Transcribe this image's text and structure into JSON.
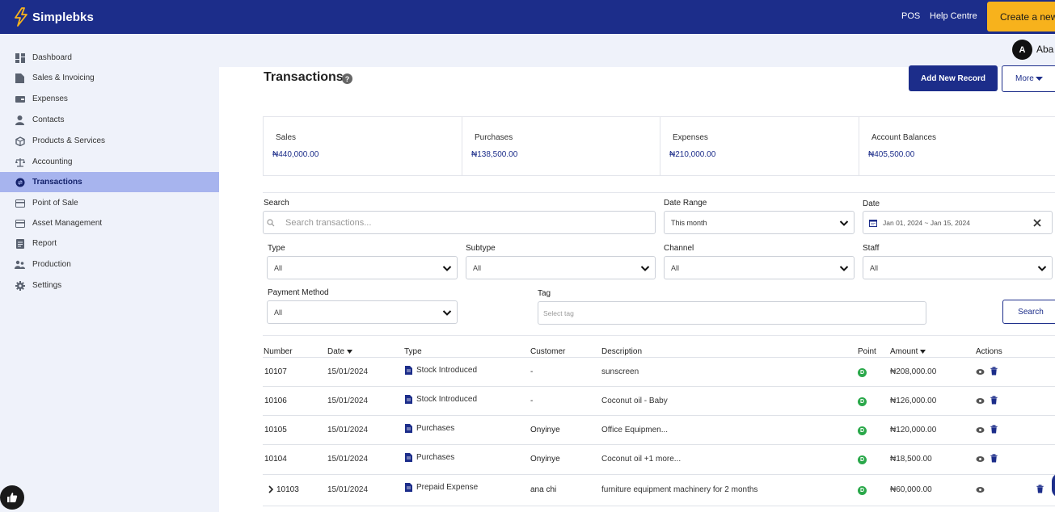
{
  "brand": {
    "name": "Simplebks"
  },
  "topnav": {
    "pos": "POS",
    "help": "Help Centre",
    "create": "Create a new"
  },
  "user": {
    "initial": "A",
    "name": "Aba"
  },
  "sidebar": {
    "items": [
      {
        "label": "Dashboard",
        "icon": "dashboard-icon",
        "active": false
      },
      {
        "label": "Sales & Invoicing",
        "icon": "document-icon",
        "active": false
      },
      {
        "label": "Expenses",
        "icon": "wallet-icon",
        "active": false
      },
      {
        "label": "Contacts",
        "icon": "person-icon",
        "active": false
      },
      {
        "label": "Products & Services",
        "icon": "box-icon",
        "active": false
      },
      {
        "label": "Accounting",
        "icon": "scale-icon",
        "active": false
      },
      {
        "label": "Transactions",
        "icon": "transactions-icon",
        "active": true
      },
      {
        "label": "Point of Sale",
        "icon": "card-icon",
        "active": false
      },
      {
        "label": "Asset Management",
        "icon": "card-icon",
        "active": false
      },
      {
        "label": "Report",
        "icon": "report-icon",
        "active": false
      },
      {
        "label": "Production",
        "icon": "people-icon",
        "active": false
      },
      {
        "label": "Settings",
        "icon": "gear-icon",
        "active": false
      }
    ]
  },
  "page": {
    "title": "Transactions",
    "add_label": "Add New Record",
    "more_label": "More"
  },
  "summary": [
    {
      "label": "Sales",
      "value": "₦440,000.00"
    },
    {
      "label": "Purchases",
      "value": "₦138,500.00"
    },
    {
      "label": "Expenses",
      "value": "₦210,000.00"
    },
    {
      "label": "Account Balances",
      "value": "₦405,500.00"
    }
  ],
  "filters": {
    "search_label": "Search",
    "search_placeholder": "Search transactions...",
    "date_range_label": "Date Range",
    "date_range_value": "This month",
    "date_label": "Date",
    "date_value": "Jan 01, 2024 ~ Jan 15, 2024",
    "type_label": "Type",
    "type_value": "All",
    "subtype_label": "Subtype",
    "subtype_value": "All",
    "channel_label": "Channel",
    "channel_value": "All",
    "staff_label": "Staff",
    "staff_value": "All",
    "payment_label": "Payment Method",
    "payment_value": "All",
    "tag_label": "Tag",
    "tag_placeholder": "Select tag",
    "search_button": "Search"
  },
  "table": {
    "headers": {
      "number": "Number",
      "date": "Date",
      "type": "Type",
      "customer": "Customer",
      "description": "Description",
      "point": "Point",
      "amount": "Amount",
      "actions": "Actions"
    },
    "rows": [
      {
        "number": "10107",
        "date": "15/01/2024",
        "type": "Stock Introduced",
        "customer": "-",
        "description": "sunscreen",
        "point": "D",
        "amount": "₦208,000.00"
      },
      {
        "number": "10106",
        "date": "15/01/2024",
        "type": "Stock Introduced",
        "customer": "-",
        "description": "Coconut oil - Baby",
        "point": "D",
        "amount": "₦126,000.00"
      },
      {
        "number": "10105",
        "date": "15/01/2024",
        "type": "Purchases",
        "customer": "Onyinye",
        "description": "Office Equipmen...",
        "point": "D",
        "amount": "₦120,000.00"
      },
      {
        "number": "10104",
        "date": "15/01/2024",
        "type": "Purchases",
        "customer": "Onyinye",
        "description": "Coconut oil +1 more...",
        "point": "D",
        "amount": "₦18,500.00"
      },
      {
        "number": "10103",
        "date": "15/01/2024",
        "type": "Prepaid Expense",
        "customer": "ana chi",
        "description": "furniture equipment machinery for 2 months",
        "point": "D",
        "amount": "₦60,000.00"
      }
    ]
  }
}
